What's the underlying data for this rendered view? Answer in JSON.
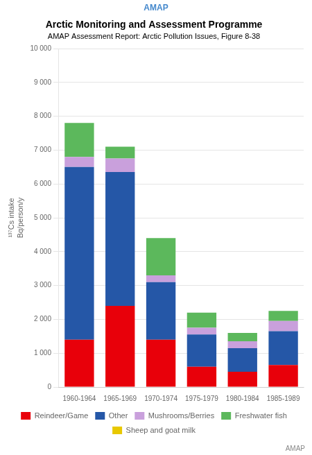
{
  "chart_data": {
    "type": "bar",
    "title": "Arctic Monitoring and Assessment Programme",
    "subtitle": "AMAP Assessment Report: Arctic Pollution Issues, Figure 8-38",
    "ylabel": "¹³⁷Cs intake\nBq/person/y",
    "annotations": [
      "AMAP",
      "AMAP"
    ],
    "categories": [
      "1960-1964",
      "1965-1969",
      "1970-1974",
      "1975-1979",
      "1980-1984",
      "1985-1989"
    ],
    "series": [
      {
        "name": "Reindeer/Game",
        "color": "#e8000a",
        "values": [
          1400,
          2400,
          1400,
          600,
          450,
          650
        ]
      },
      {
        "name": "Other",
        "color": "#2557a7",
        "values": [
          5100,
          3950,
          1700,
          950,
          700,
          1000
        ]
      },
      {
        "name": "Mushrooms/Berries",
        "color": "#c9a0dc",
        "values": [
          300,
          400,
          200,
          200,
          200,
          300
        ]
      },
      {
        "name": "Freshwater fish",
        "color": "#5cb85c",
        "values": [
          1000,
          350,
          1100,
          450,
          250,
          300
        ]
      },
      {
        "name": "Sheep and goat milk",
        "color": "#e8c800",
        "values": [
          0,
          0,
          0,
          0,
          0,
          0
        ]
      }
    ],
    "stacked": true,
    "ylim": [
      0,
      10000
    ],
    "yticks": [
      0,
      {
        "value": 1000,
        "label": "1 000"
      },
      {
        "value": 2000,
        "label": "2 000"
      },
      {
        "value": 3000,
        "label": "3 000"
      },
      {
        "value": 4000,
        "label": "4 000"
      },
      {
        "value": 5000,
        "label": "5 000"
      },
      {
        "value": 6000,
        "label": "6 000"
      },
      {
        "value": 7000,
        "label": "7 000"
      },
      {
        "value": 8000,
        "label": "8 000"
      },
      {
        "value": 9000,
        "label": "9 000"
      },
      {
        "value": 10000,
        "label": "10 000"
      }
    ],
    "grid": true,
    "legend": "bottom"
  }
}
